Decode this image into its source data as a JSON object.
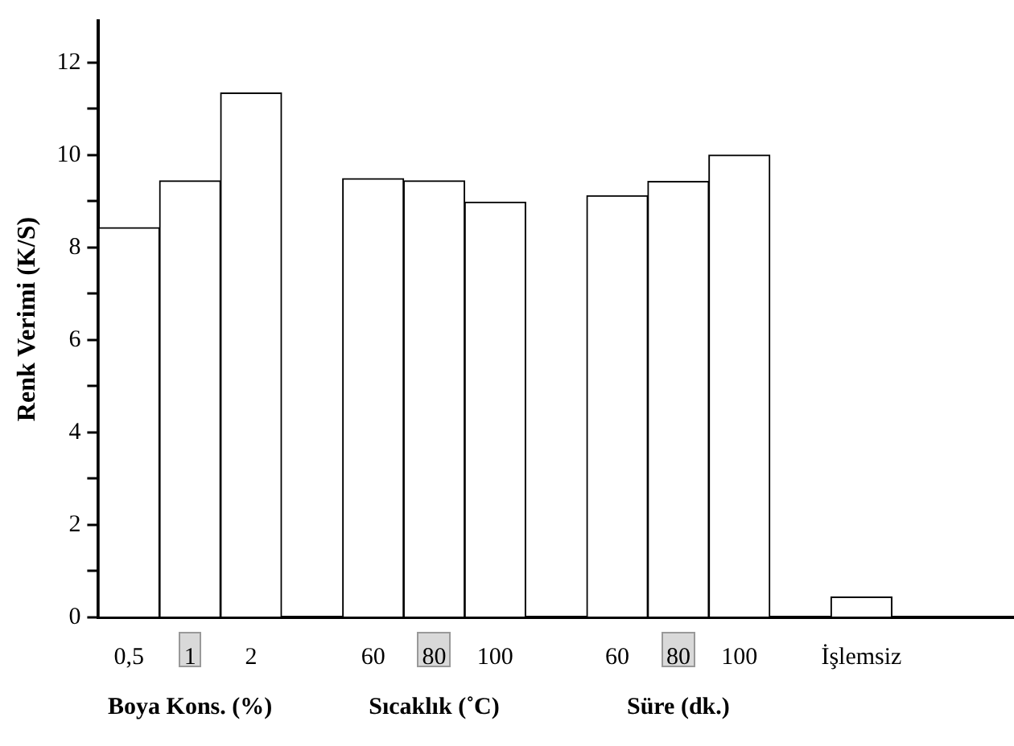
{
  "chart_data": {
    "type": "bar",
    "ylabel": "Renk Verimi (K/S)",
    "categories": [
      "0,5",
      "1",
      "2",
      null,
      "60",
      "80",
      "100",
      null,
      "60",
      "80",
      "100",
      null,
      "İşlemsiz",
      null,
      null
    ],
    "values": [
      8.43,
      9.44,
      11.34,
      null,
      9.49,
      9.44,
      8.98,
      null,
      9.12,
      9.43,
      10.0,
      null,
      0.44,
      null,
      null
    ],
    "color": "#ffffff",
    "ylim": [
      0,
      12.9
    ],
    "yticks": [
      0,
      {
        "value": 1,
        "label": null
      },
      2,
      {
        "value": 3,
        "label": null
      },
      4,
      {
        "value": 5,
        "label": null
      },
      6,
      {
        "value": 7,
        "label": null
      },
      8,
      {
        "value": 9,
        "label": null
      },
      10,
      {
        "value": 11,
        "label": null
      },
      12
    ],
    "annotations": [
      "Boya Kons. (%)",
      "Sıcaklık (˚C)",
      "Süre (dk.)"
    ],
    "grid": false,
    "legend": false
  }
}
